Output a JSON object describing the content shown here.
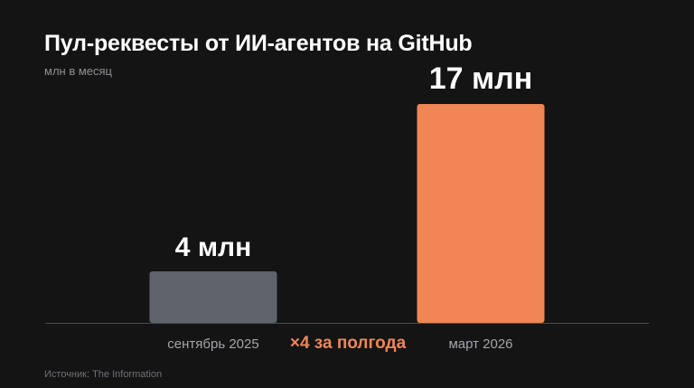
{
  "header": {
    "title": "Пул-реквесты от ИИ-агентов на GitHub",
    "subtitle": "млн в месяц"
  },
  "footer": {
    "source": "Источник: The Information"
  },
  "colors": {
    "background": "#141415",
    "bar_past": "#5f636c",
    "bar_future": "#ef8654",
    "accent": "#ef8654",
    "axis": "#4a4c52"
  },
  "chart_data": {
    "type": "bar",
    "title": "Пул-реквесты от ИИ-агентов на GitHub",
    "ylabel": "млн в месяц",
    "xlabel": "",
    "categories": [
      "сентябрь 2025",
      "март 2026"
    ],
    "values": [
      4,
      17
    ],
    "data_labels": [
      "4 млн",
      "17 млн"
    ],
    "bar_colors": [
      "#5f636c",
      "#ef8654"
    ],
    "ylim": [
      0,
      17
    ],
    "grid": false,
    "annotation": "×4 за полгода"
  }
}
